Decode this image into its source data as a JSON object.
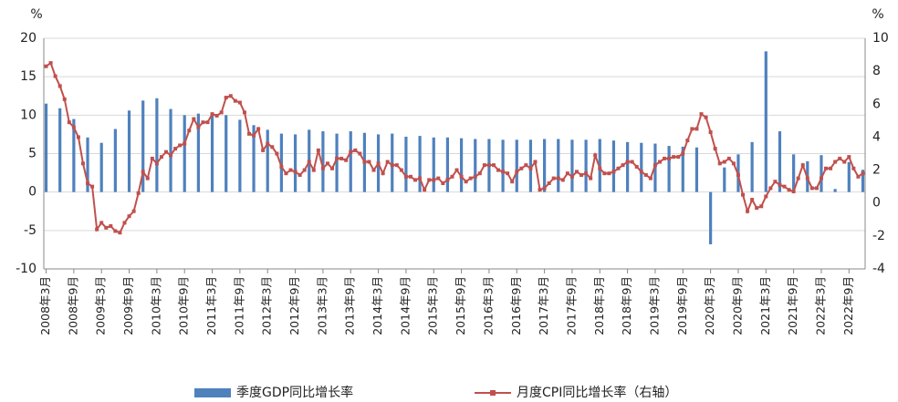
{
  "chart_data": {
    "type": "bar-line",
    "y_unit": "%",
    "y2_unit": "%",
    "categories": [
      "2008年3月",
      null,
      null,
      null,
      null,
      null,
      "2008年9月",
      null,
      null,
      null,
      null,
      null,
      "2009年3月",
      null,
      null,
      null,
      null,
      null,
      "2009年9月",
      null,
      null,
      null,
      null,
      null,
      "2010年3月",
      null,
      null,
      null,
      null,
      null,
      "2010年9月",
      null,
      null,
      null,
      null,
      null,
      "2011年3月",
      null,
      null,
      null,
      null,
      null,
      "2011年9月",
      null,
      null,
      null,
      null,
      null,
      "2012年3月",
      null,
      null,
      null,
      null,
      null,
      "2012年9月",
      null,
      null,
      null,
      null,
      null,
      "2013年3月",
      null,
      null,
      null,
      null,
      null,
      "2013年9月",
      null,
      null,
      null,
      null,
      null,
      "2014年3月",
      null,
      null,
      null,
      null,
      null,
      "2014年9月",
      null,
      null,
      null,
      null,
      null,
      "2015年3月",
      null,
      null,
      null,
      null,
      null,
      "2015年9月",
      null,
      null,
      null,
      null,
      null,
      "2016年3月",
      null,
      null,
      null,
      null,
      null,
      "2016年9月",
      null,
      null,
      null,
      null,
      null,
      "2017年3月",
      null,
      null,
      null,
      null,
      null,
      "2017年9月",
      null,
      null,
      null,
      null,
      null,
      "2018年3月",
      null,
      null,
      null,
      null,
      null,
      "2018年9月",
      null,
      null,
      null,
      null,
      null,
      "2019年3月",
      null,
      null,
      null,
      null,
      null,
      "2019年9月",
      null,
      null,
      null,
      null,
      null,
      "2020年3月",
      null,
      null,
      null,
      null,
      null,
      "2020年9月",
      null,
      null,
      null,
      null,
      null,
      "2021年3月",
      null,
      null,
      null,
      null,
      null,
      "2021年9月",
      null,
      null,
      null,
      null,
      null,
      "2022年3月",
      null,
      null,
      null,
      null,
      null,
      "2022年9月",
      null,
      null,
      null
    ],
    "series": [
      {
        "name": "季度GDP同比增长率",
        "kind": "bar",
        "color": "#4f81bd",
        "values": [
          11.5,
          null,
          null,
          10.9,
          null,
          null,
          9.5,
          null,
          null,
          7.1,
          null,
          null,
          6.4,
          null,
          null,
          8.2,
          null,
          null,
          10.6,
          null,
          null,
          11.9,
          null,
          null,
          12.2,
          null,
          null,
          10.8,
          null,
          null,
          10.0,
          null,
          null,
          10.2,
          null,
          null,
          10.2,
          null,
          null,
          10.0,
          null,
          null,
          9.4,
          null,
          null,
          8.7,
          null,
          null,
          8.1,
          null,
          null,
          7.6,
          null,
          null,
          7.5,
          null,
          null,
          8.1,
          null,
          null,
          7.9,
          null,
          null,
          7.6,
          null,
          null,
          7.9,
          null,
          null,
          7.7,
          null,
          null,
          7.5,
          null,
          null,
          7.6,
          null,
          null,
          7.2,
          null,
          null,
          7.3,
          null,
          null,
          7.1,
          null,
          null,
          7.1,
          null,
          null,
          7.0,
          null,
          null,
          6.9,
          null,
          null,
          6.9,
          null,
          null,
          6.8,
          null,
          null,
          6.8,
          null,
          null,
          6.8,
          null,
          null,
          6.9,
          null,
          null,
          6.9,
          null,
          null,
          6.8,
          null,
          null,
          6.8,
          null,
          null,
          6.9,
          null,
          null,
          6.7,
          null,
          null,
          6.5,
          null,
          null,
          6.4,
          null,
          null,
          6.3,
          null,
          null,
          6.0,
          null,
          null,
          5.9,
          null,
          null,
          5.8,
          null,
          null,
          -6.8,
          null,
          null,
          3.2,
          null,
          null,
          4.9,
          null,
          null,
          6.5,
          null,
          null,
          18.3,
          null,
          null,
          7.9,
          null,
          null,
          4.9,
          null,
          null,
          4.0,
          null,
          null,
          4.8,
          null,
          null,
          0.4,
          null,
          null,
          3.9,
          null,
          null,
          2.9
        ]
      },
      {
        "name": "月度CPI同比增长率（右轴）",
        "kind": "line",
        "axis": "y2",
        "color": "#c0504d",
        "values": [
          8.3,
          8.5,
          7.7,
          7.1,
          6.3,
          4.9,
          4.6,
          4.0,
          2.4,
          1.2,
          1.0,
          -1.6,
          -1.2,
          -1.5,
          -1.4,
          -1.7,
          -1.8,
          -1.2,
          -0.8,
          -0.5,
          0.6,
          1.9,
          1.5,
          2.7,
          2.4,
          2.8,
          3.1,
          2.9,
          3.3,
          3.5,
          3.6,
          4.4,
          5.1,
          4.6,
          4.9,
          4.9,
          5.4,
          5.3,
          5.5,
          6.4,
          6.5,
          6.2,
          6.1,
          5.5,
          4.2,
          4.1,
          4.5,
          3.2,
          3.6,
          3.4,
          3.0,
          2.2,
          1.8,
          2.0,
          1.9,
          1.7,
          2.0,
          2.5,
          2.0,
          3.2,
          2.1,
          2.4,
          2.1,
          2.7,
          2.7,
          2.6,
          3.1,
          3.2,
          3.0,
          2.5,
          2.5,
          2.0,
          2.4,
          1.8,
          2.5,
          2.3,
          2.3,
          2.0,
          1.6,
          1.6,
          1.4,
          1.5,
          0.8,
          1.4,
          1.4,
          1.5,
          1.2,
          1.4,
          1.6,
          2.0,
          1.6,
          1.3,
          1.5,
          1.6,
          1.8,
          2.3,
          2.3,
          2.3,
          2.0,
          1.9,
          1.8,
          1.3,
          1.9,
          2.1,
          2.3,
          2.1,
          2.5,
          0.8,
          0.9,
          1.2,
          1.5,
          1.5,
          1.4,
          1.8,
          1.6,
          1.9,
          1.7,
          1.8,
          1.5,
          2.9,
          2.1,
          1.8,
          1.8,
          1.9,
          2.1,
          2.3,
          2.5,
          2.5,
          2.2,
          1.9,
          1.7,
          1.5,
          2.3,
          2.5,
          2.7,
          2.7,
          2.8,
          2.8,
          3.0,
          3.8,
          4.5,
          4.5,
          5.4,
          5.2,
          4.3,
          3.3,
          2.4,
          2.5,
          2.7,
          2.4,
          1.7,
          0.5,
          -0.5,
          0.2,
          -0.3,
          -0.2,
          0.4,
          0.9,
          1.3,
          1.1,
          1.0,
          0.8,
          0.7,
          1.5,
          2.3,
          1.5,
          0.9,
          0.9,
          1.5,
          2.1,
          2.1,
          2.5,
          2.7,
          2.5,
          2.8,
          2.1,
          1.6,
          1.8
        ]
      }
    ],
    "ylim": [
      -10,
      20
    ],
    "yticks": [
      -10,
      -5,
      0,
      5,
      10,
      15,
      20
    ],
    "y2lim": [
      -4,
      10
    ],
    "y2ticks": [
      -4,
      -2,
      0,
      2,
      4,
      6,
      8,
      10
    ],
    "grid": true,
    "legend": "bottom"
  }
}
